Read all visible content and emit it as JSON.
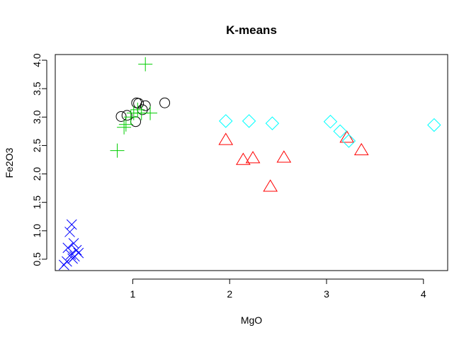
{
  "chart_data": {
    "type": "scatter",
    "title": "K-means",
    "xlabel": "MgO",
    "ylabel": "Fe2O3",
    "xlim": [
      0.2,
      4.25
    ],
    "ylim": [
      0.3,
      4.1
    ],
    "x_ticks": [
      1,
      2,
      3,
      4
    ],
    "x_tick_labels": [
      "1",
      "2",
      "3",
      "4"
    ],
    "y_ticks": [
      0.5,
      1.0,
      1.5,
      2.0,
      2.5,
      3.0,
      3.5,
      4.0
    ],
    "y_tick_labels": [
      "0.5",
      "1.0",
      "1.5",
      "2.0",
      "2.5",
      "3.0",
      "3.5",
      "4.0"
    ],
    "grid": false,
    "series": [
      {
        "marker": "circle",
        "color": "#000000",
        "points": [
          [
            0.88,
            3.01
          ],
          [
            0.94,
            3.03
          ],
          [
            1.03,
            2.92
          ],
          [
            1.04,
            3.25
          ],
          [
            1.06,
            3.24
          ],
          [
            1.1,
            3.13
          ],
          [
            1.13,
            3.2
          ],
          [
            1.33,
            3.25
          ]
        ]
      },
      {
        "marker": "triangle",
        "color": "#ff0000",
        "points": [
          [
            1.96,
            2.6
          ],
          [
            2.14,
            2.25
          ],
          [
            2.24,
            2.28
          ],
          [
            2.42,
            1.78
          ],
          [
            2.56,
            2.29
          ],
          [
            3.21,
            2.64
          ],
          [
            3.36,
            2.42
          ]
        ]
      },
      {
        "marker": "plus",
        "color": "#00cd00",
        "points": [
          [
            0.84,
            2.41
          ],
          [
            0.91,
            2.82
          ],
          [
            0.93,
            2.87
          ],
          [
            0.98,
            3.0
          ],
          [
            1.01,
            3.07
          ],
          [
            1.05,
            3.13
          ],
          [
            1.09,
            3.07
          ],
          [
            1.13,
            3.93
          ],
          [
            1.18,
            3.07
          ]
        ]
      },
      {
        "marker": "x",
        "color": "#0000ff",
        "points": [
          [
            0.29,
            0.4
          ],
          [
            0.32,
            0.46
          ],
          [
            0.33,
            0.7
          ],
          [
            0.35,
            0.98
          ],
          [
            0.36,
            0.58
          ],
          [
            0.37,
            1.11
          ],
          [
            0.38,
            0.51
          ],
          [
            0.39,
            0.78
          ],
          [
            0.4,
            0.55
          ],
          [
            0.42,
            0.66
          ],
          [
            0.44,
            0.61
          ]
        ]
      },
      {
        "marker": "diamond",
        "color": "#00ffff",
        "points": [
          [
            1.96,
            2.93
          ],
          [
            2.2,
            2.93
          ],
          [
            2.44,
            2.89
          ],
          [
            3.04,
            2.92
          ],
          [
            3.14,
            2.75
          ],
          [
            3.23,
            2.58
          ],
          [
            4.11,
            2.86
          ]
        ]
      }
    ]
  }
}
